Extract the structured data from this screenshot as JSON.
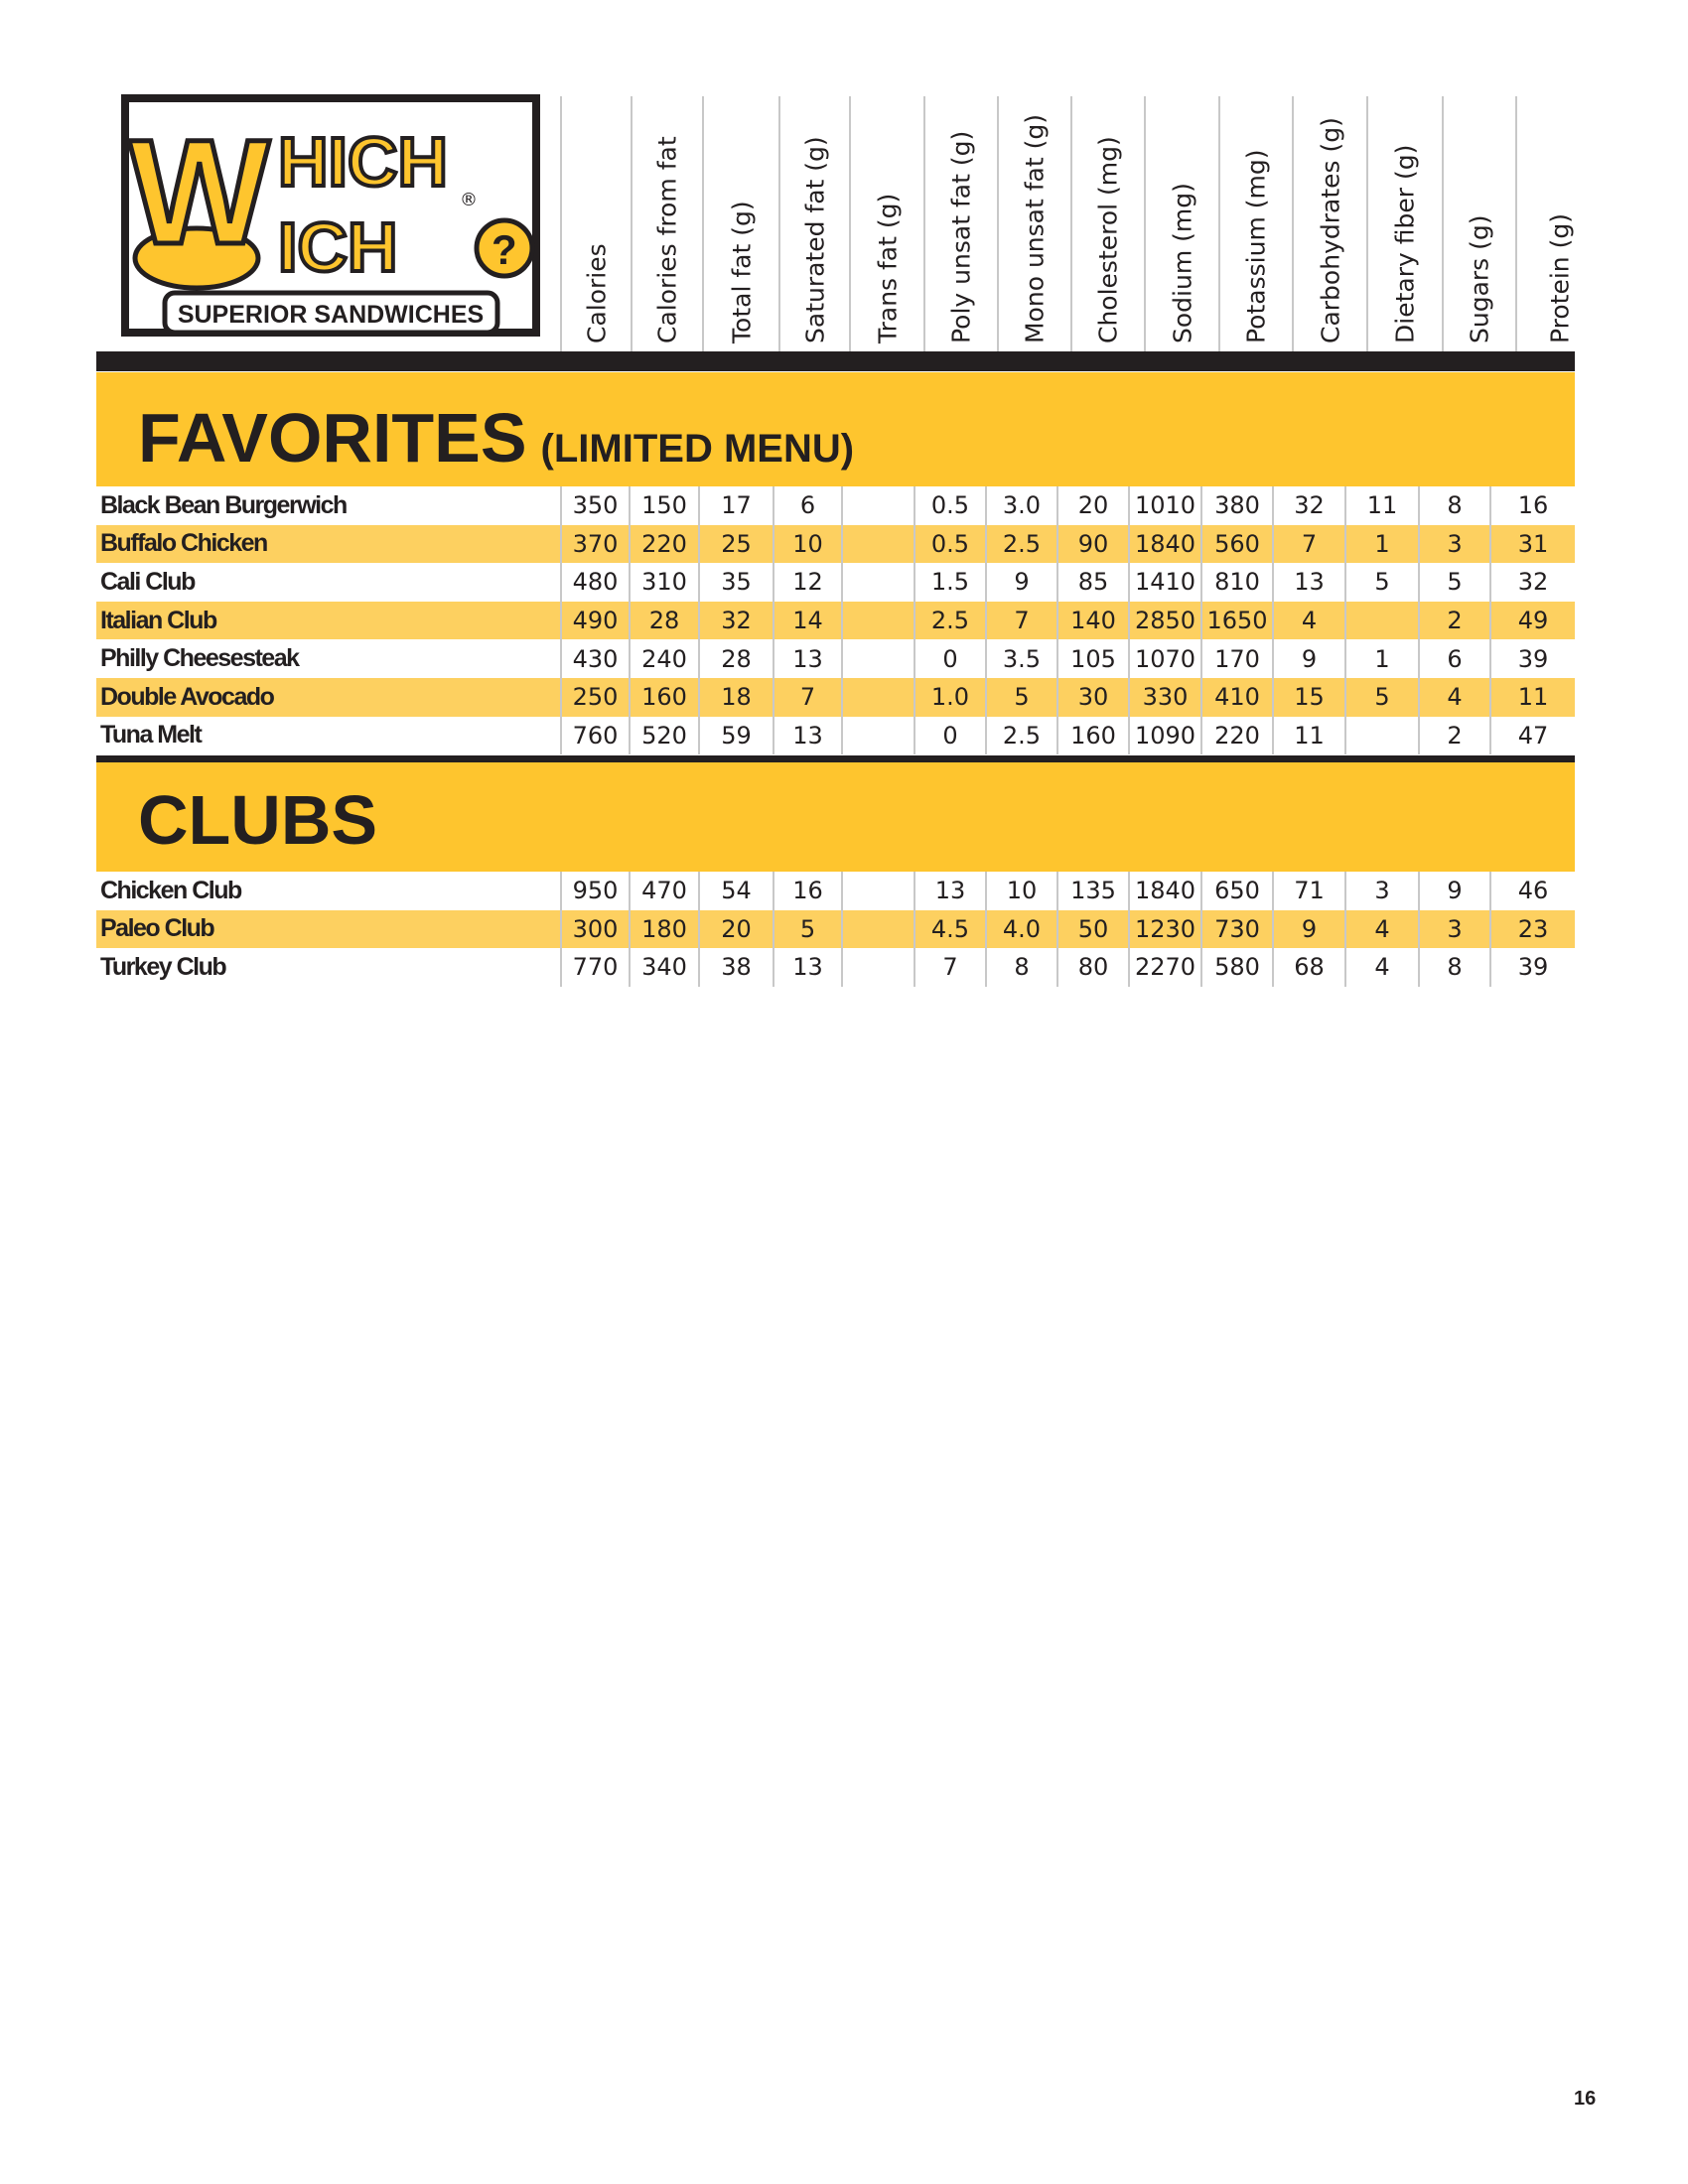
{
  "logo": {
    "line1": "HICH",
    "line2": "ICH",
    "big_letter": "W",
    "tagline": "SUPERIOR SANDWICHES",
    "registered": "®",
    "question": "?"
  },
  "columns": [
    "Calories",
    "Calories from fat",
    "Total fat (g)",
    "Saturated fat (g)",
    "Trans fat (g)",
    "Poly unsat fat (g)",
    "Mono unsat fat (g)",
    "Cholesterol (mg)",
    "Sodium (mg)",
    "Potassium (mg)",
    "Carbohydrates (g)",
    "Dietary fiber (g)",
    "Sugars (g)",
    "Protein (g)"
  ],
  "sections": [
    {
      "title": "FAVORITES",
      "subtitle": "(LIMITED MENU)",
      "rows": [
        {
          "name": "Black Bean Burgerwich",
          "values": [
            "350",
            "150",
            "17",
            "6",
            "",
            "0.5",
            "3.0",
            "20",
            "1010",
            "380",
            "32",
            "11",
            "8",
            "16"
          ]
        },
        {
          "name": "Buffalo Chicken",
          "values": [
            "370",
            "220",
            "25",
            "10",
            "",
            "0.5",
            "2.5",
            "90",
            "1840",
            "560",
            "7",
            "1",
            "3",
            "31"
          ]
        },
        {
          "name": "Cali Club",
          "values": [
            "480",
            "310",
            "35",
            "12",
            "",
            "1.5",
            "9",
            "85",
            "1410",
            "810",
            "13",
            "5",
            "5",
            "32"
          ]
        },
        {
          "name": "Italian Club",
          "values": [
            "490",
            "28",
            "32",
            "14",
            "",
            "2.5",
            "7",
            "140",
            "2850",
            "1650",
            "4",
            "",
            "2",
            "49"
          ]
        },
        {
          "name": "Philly Cheesesteak",
          "values": [
            "430",
            "240",
            "28",
            "13",
            "",
            "0",
            "3.5",
            "105",
            "1070",
            "170",
            "9",
            "1",
            "6",
            "39"
          ]
        },
        {
          "name": "Double Avocado",
          "values": [
            "250",
            "160",
            "18",
            "7",
            "",
            "1.0",
            "5",
            "30",
            "330",
            "410",
            "15",
            "5",
            "4",
            "11"
          ]
        },
        {
          "name": "Tuna Melt",
          "values": [
            "760",
            "520",
            "59",
            "13",
            "",
            "0",
            "2.5",
            "160",
            "1090",
            "220",
            "11",
            "",
            "2",
            "47"
          ]
        }
      ]
    },
    {
      "title": "CLUBS",
      "subtitle": "",
      "rows": [
        {
          "name": "Chicken Club",
          "values": [
            "950",
            "470",
            "54",
            "16",
            "",
            "13",
            "10",
            "135",
            "1840",
            "650",
            "71",
            "3",
            "9",
            "46"
          ]
        },
        {
          "name": "Paleo Club",
          "values": [
            "300",
            "180",
            "20",
            "5",
            "",
            "4.5",
            "4.0",
            "50",
            "1230",
            "730",
            "9",
            "4",
            "3",
            "23"
          ]
        },
        {
          "name": "Turkey Club",
          "values": [
            "770",
            "340",
            "38",
            "13",
            "",
            "7",
            "8",
            "80",
            "2270",
            "580",
            "68",
            "4",
            "8",
            "39"
          ]
        }
      ]
    }
  ],
  "page_number": "16",
  "colors": {
    "band": "#fec52e",
    "row_alt": "#fdd060",
    "dark": "#231f20"
  }
}
